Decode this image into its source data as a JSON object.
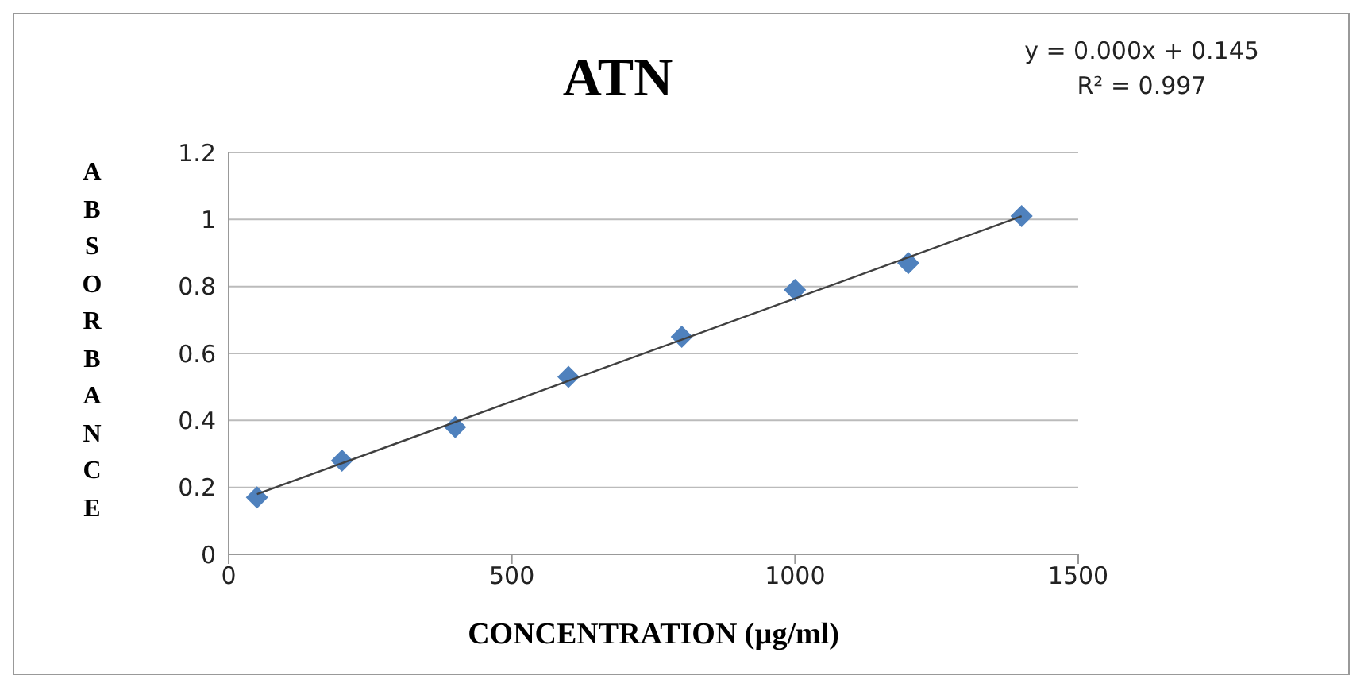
{
  "chart_data": {
    "type": "scatter",
    "title": "ATN",
    "xlabel": "CONCENTRATION (µg/ml)",
    "ylabel": "ABSORBANCE",
    "x": [
      50,
      200,
      400,
      600,
      800,
      1000,
      1200,
      1400
    ],
    "series": [
      {
        "color": "#4f81bd",
        "marker": "diamond",
        "values": [
          0.17,
          0.28,
          0.38,
          0.53,
          0.65,
          0.79,
          0.87,
          1.01
        ]
      },
      {
        "type": "line",
        "color": "#404040",
        "marker": "none",
        "x": [
          50,
          1400
        ],
        "values": [
          0.18,
          1.01
        ]
      }
    ],
    "annotations": [
      "y = 0.000x + 0.145",
      "R² = 0.997"
    ],
    "xlim": [
      0,
      1500
    ],
    "xticks": [
      0,
      500,
      1000,
      1500
    ],
    "ylim": [
      0,
      1.2
    ],
    "yticks": [
      0,
      0.2,
      0.4,
      0.6,
      0.8,
      1,
      1.2
    ],
    "grid": "y"
  }
}
